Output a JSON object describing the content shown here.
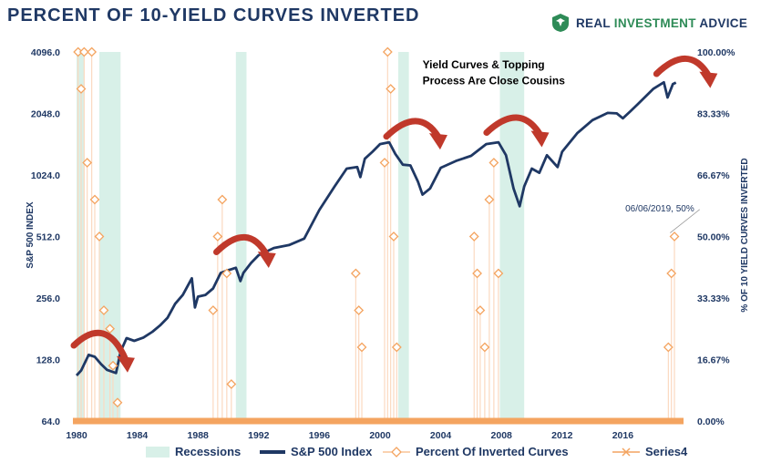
{
  "title": "PERCENT OF 10-YIELD CURVES INVERTED",
  "brand": {
    "name_part1": "REAL ",
    "name_part2": "INVESTMENT",
    "name_part3": " ADVICE"
  },
  "chart_data": {
    "type": "line",
    "title": "PERCENT OF 10-YIELD CURVES INVERTED",
    "xlabel": "",
    "ylabel_left": "S&P 500 INDEX",
    "ylabel_right": "% OF 10 YIELD CURVES INVERTED",
    "x_ticks": [
      "1980",
      "1984",
      "1988",
      "1992",
      "1996",
      "2000",
      "2004",
      "2008",
      "2012",
      "2016"
    ],
    "xlim": [
      1980,
      2020
    ],
    "y_left_ticks": [
      "64.0",
      "128.0",
      "256.0",
      "512.0",
      "1024.0",
      "2048.0",
      "4096.0"
    ],
    "y_left_scale": "log2",
    "ylim_left": [
      64,
      4096
    ],
    "y_right_ticks": [
      "0.00%",
      "16.67%",
      "33.33%",
      "50.00%",
      "66.67%",
      "83.33%",
      "100.00%"
    ],
    "ylim_right": [
      0,
      100
    ],
    "legend": [
      "Recessions",
      "S&P 500 Index",
      "Percent Of Inverted Curves",
      "Series4"
    ],
    "legend_position": "bottom",
    "colors": {
      "recession": "#d8f0e8",
      "sp500": "#1f3864",
      "inverted": "#f4a460",
      "series4": "#f4a460",
      "arrow": "#c0392b"
    },
    "recessions": [
      [
        1980.0,
        1980.5
      ],
      [
        1981.5,
        1982.9
      ],
      [
        1990.5,
        1991.2
      ],
      [
        2001.2,
        2001.9
      ],
      [
        2007.9,
        2009.5
      ]
    ],
    "series": [
      {
        "name": "S&P 500 Index",
        "x": [
          1980.0,
          1980.3,
          1980.8,
          1981.2,
          1981.6,
          1982.0,
          1982.6,
          1982.9,
          1983.3,
          1983.8,
          1984.4,
          1985.0,
          1985.5,
          1986.0,
          1986.5,
          1987.0,
          1987.6,
          1987.8,
          1988.0,
          1988.5,
          1989.0,
          1989.5,
          1990.0,
          1990.5,
          1990.8,
          1991.0,
          1991.5,
          1992.0,
          1993.0,
          1994.0,
          1995.0,
          1996.0,
          1997.0,
          1997.8,
          1998.5,
          1998.7,
          1999.0,
          1999.5,
          2000.0,
          2000.6,
          2001.0,
          2001.5,
          2002.0,
          2002.5,
          2002.8,
          2003.3,
          2004.0,
          2005.0,
          2006.0,
          2007.0,
          2007.8,
          2008.3,
          2008.8,
          2009.2,
          2009.5,
          2010.0,
          2010.5,
          2011.0,
          2011.7,
          2012.0,
          2013.0,
          2014.0,
          2015.0,
          2015.6,
          2016.0,
          2016.5,
          2017.0,
          2018.0,
          2018.7,
          2018.95,
          2019.3,
          2019.5
        ],
        "values": [
          107,
          113,
          135,
          132,
          122,
          114,
          110,
          140,
          163,
          158,
          164,
          175,
          188,
          205,
          240,
          265,
          320,
          230,
          260,
          265,
          285,
          340,
          350,
          360,
          310,
          340,
          380,
          415,
          450,
          465,
          500,
          690,
          900,
          1100,
          1120,
          1000,
          1230,
          1330,
          1450,
          1480,
          1300,
          1150,
          1140,
          950,
          820,
          880,
          1110,
          1200,
          1270,
          1450,
          1480,
          1280,
          880,
          720,
          900,
          1100,
          1050,
          1280,
          1120,
          1330,
          1640,
          1900,
          2060,
          2050,
          1940,
          2100,
          2280,
          2700,
          2910,
          2450,
          2850,
          2900
        ]
      },
      {
        "name": "Percent Of Inverted Curves",
        "x": [
          1980.1,
          1980.3,
          1980.5,
          1980.7,
          1981.0,
          1981.2,
          1981.5,
          1981.8,
          1982.2,
          1982.4,
          1982.7,
          1989.0,
          1989.3,
          1989.6,
          1989.9,
          1990.2,
          1998.4,
          1998.6,
          1998.8,
          2000.3,
          2000.5,
          2000.7,
          2000.9,
          2001.1,
          2006.2,
          2006.4,
          2006.6,
          2006.9,
          2007.2,
          2007.5,
          2007.8,
          2019.0,
          2019.2,
          2019.4
        ],
        "values": [
          100,
          90,
          100,
          70,
          100,
          60,
          50,
          30,
          25,
          15,
          5,
          30,
          50,
          60,
          40,
          10,
          40,
          30,
          20,
          70,
          100,
          90,
          50,
          20,
          50,
          40,
          30,
          20,
          60,
          70,
          40,
          20,
          40,
          50
        ]
      },
      {
        "name": "Series4",
        "x": [],
        "values": []
      }
    ],
    "annotations": [
      {
        "text": "Yield Curves & Topping",
        "x": 2002.8,
        "y": 3400
      },
      {
        "text": "Process Are Close Cousins",
        "x": 2002.8,
        "y": 2850
      },
      {
        "text": "06/06/2019, 50%",
        "x": 2016.5,
        "y": 680
      }
    ]
  }
}
